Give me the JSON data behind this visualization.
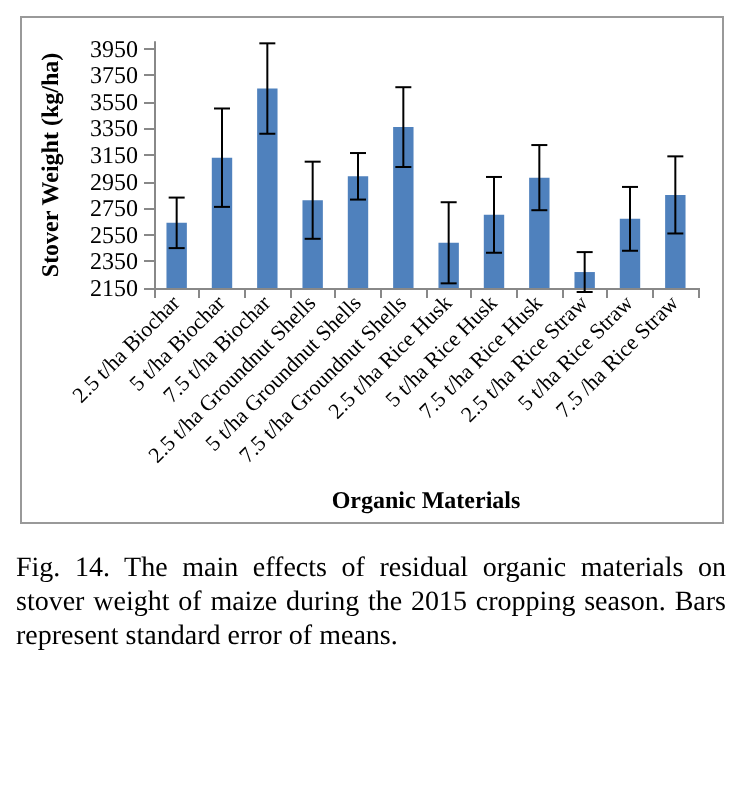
{
  "chart_data": {
    "type": "bar",
    "xlabel": "Organic Materials",
    "ylabel": "Stover Weight (kg/ha)",
    "categories": [
      "2.5 t/ha Biochar",
      "5 t/ha Biochar",
      "7.5 t/ha Biochar",
      "2.5 t/ha Groundnut Shells",
      "5 t/ha Groundnut Shells",
      "7.5 t/ha Groundnut Shells",
      "2.5 t/ha Rice Husk",
      "5 t/ha Rice Husk",
      "7.5 t/ha Rice Husk",
      "2.5 t/ha Rice Straw",
      "5 t/ha Rice Straw",
      "7.5 /ha Rice Straw"
    ],
    "values": [
      2640,
      3130,
      3650,
      2810,
      2990,
      3360,
      2490,
      2700,
      2980,
      2270,
      2670,
      2850
    ],
    "errors": [
      190,
      370,
      340,
      290,
      175,
      300,
      305,
      285,
      245,
      150,
      240,
      290
    ],
    "color": "#4f81bd",
    "ylim": [
      2150,
      4000
    ],
    "yticks": [
      2150,
      2350,
      2550,
      2750,
      2950,
      3150,
      3350,
      3550,
      3750,
      3950
    ],
    "grid": false,
    "annotations": [
      "Fig. 14. The main effects of residual organic materials on stover weight of maize during the 2015 cropping season. Bars represent standard error of means."
    ]
  }
}
